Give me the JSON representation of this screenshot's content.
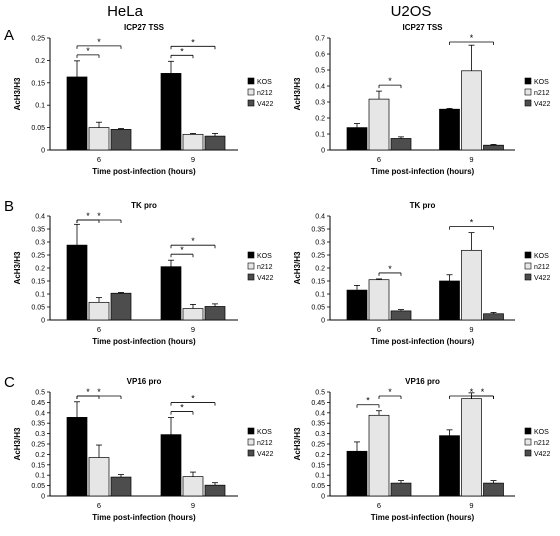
{
  "column_titles": [
    "HeLa",
    "U2OS"
  ],
  "row_labels": [
    "A",
    "B",
    "C"
  ],
  "colors": {
    "KOS": "#000000",
    "n212": "#e6e6e6",
    "V422": "#4d4d4d"
  },
  "chart_data": [
    {
      "type": "bar",
      "title": "ICP27 TSS",
      "xlabel": "Time post-infection  (hours)",
      "ylabel": "AcH3/H3",
      "categories": [
        "6",
        "9"
      ],
      "ylim": [
        0,
        0.25
      ],
      "yticks": [
        "0",
        "0.05",
        "0.1",
        "0.15",
        "0.2",
        "0.25"
      ],
      "series": [
        {
          "name": "KOS",
          "values": [
            0.163,
            0.171
          ],
          "errors": [
            0.036,
            0.027
          ]
        },
        {
          "name": "n212",
          "values": [
            0.05,
            0.035
          ],
          "errors": [
            0.012,
            0.002
          ]
        },
        {
          "name": "V422",
          "values": [
            0.046,
            0.031
          ],
          "errors": [
            0.002,
            0.006
          ]
        }
      ],
      "significance": [
        {
          "cat": 0,
          "from": 0,
          "to": 1,
          "label": "*"
        },
        {
          "cat": 0,
          "from": 0,
          "to": 2,
          "label": "*"
        },
        {
          "cat": 1,
          "from": 0,
          "to": 1,
          "label": "*"
        },
        {
          "cat": 1,
          "from": 0,
          "to": 2,
          "label": "*"
        }
      ]
    },
    {
      "type": "bar",
      "title": "ICP27 TSS",
      "xlabel": "Time post-infection  (hours)",
      "ylabel": "AcH3/H3",
      "categories": [
        "6",
        "9"
      ],
      "ylim": [
        0,
        0.7
      ],
      "yticks": [
        "0",
        "0.1",
        "0.2",
        "0.3",
        "0.4",
        "0.5",
        "0.6",
        "0.7"
      ],
      "series": [
        {
          "name": "KOS",
          "values": [
            0.14,
            0.255
          ],
          "errors": [
            0.025,
            0.005
          ]
        },
        {
          "name": "n212",
          "values": [
            0.318,
            0.495
          ],
          "errors": [
            0.05,
            0.16
          ]
        },
        {
          "name": "V422",
          "values": [
            0.072,
            0.03
          ],
          "errors": [
            0.01,
            0.005
          ]
        }
      ],
      "significance": [
        {
          "cat": 0,
          "from": 1,
          "to": 2,
          "label": "*"
        },
        {
          "cat": 1,
          "from": 0,
          "to": 2,
          "label": "*"
        }
      ]
    },
    {
      "type": "bar",
      "title": "TK pro",
      "xlabel": "Time post-infection  (hours)",
      "ylabel": "AcH3/H3",
      "categories": [
        "6",
        "9"
      ],
      "ylim": [
        0,
        0.4
      ],
      "yticks": [
        "0",
        "0.05",
        "0.1",
        "0.15",
        "0.2",
        "0.25",
        "0.3",
        "0.35",
        "0.4"
      ],
      "series": [
        {
          "name": "KOS",
          "values": [
            0.288,
            0.205
          ],
          "errors": [
            0.08,
            0.025
          ]
        },
        {
          "name": "n212",
          "values": [
            0.068,
            0.044
          ],
          "errors": [
            0.018,
            0.016
          ]
        },
        {
          "name": "V422",
          "values": [
            0.103,
            0.052
          ],
          "errors": [
            0.003,
            0.01
          ]
        }
      ],
      "significance": [
        {
          "cat": 0,
          "from": 0,
          "to": 1,
          "label": "*"
        },
        {
          "cat": 0,
          "from": 0,
          "to": 2,
          "label": "*"
        },
        {
          "cat": 1,
          "from": 0,
          "to": 1,
          "label": "*"
        },
        {
          "cat": 1,
          "from": 0,
          "to": 2,
          "label": "*"
        }
      ]
    },
    {
      "type": "bar",
      "title": "TK pro",
      "xlabel": "Time post-infection  (hours)",
      "ylabel": "AcH3/H3",
      "categories": [
        "6",
        "9"
      ],
      "ylim": [
        0,
        0.4
      ],
      "yticks": [
        "0",
        "0.05",
        "0.1",
        "0.15",
        "0.2",
        "0.25",
        "0.3",
        "0.35",
        "0.4"
      ],
      "series": [
        {
          "name": "KOS",
          "values": [
            0.115,
            0.15
          ],
          "errors": [
            0.018,
            0.024
          ]
        },
        {
          "name": "n212",
          "values": [
            0.155,
            0.268
          ],
          "errors": [
            0.003,
            0.068
          ]
        },
        {
          "name": "V422",
          "values": [
            0.035,
            0.024
          ],
          "errors": [
            0.005,
            0.005
          ]
        }
      ],
      "significance": [
        {
          "cat": 0,
          "from": 1,
          "to": 2,
          "label": "*"
        },
        {
          "cat": 1,
          "from": 0,
          "to": 2,
          "label": "*"
        }
      ]
    },
    {
      "type": "bar",
      "title": "VP16 pro",
      "xlabel": "Time post-infection  (hours)",
      "ylabel": "AcH3/H3",
      "categories": [
        "6",
        "9"
      ],
      "ylim": [
        0,
        0.5
      ],
      "yticks": [
        "0",
        "0.05",
        "0.1",
        "0.15",
        "0.2",
        "0.25",
        "0.3",
        "0.35",
        "0.4",
        "0.45",
        "0.5"
      ],
      "series": [
        {
          "name": "KOS",
          "values": [
            0.378,
            0.295
          ],
          "errors": [
            0.075,
            0.082
          ]
        },
        {
          "name": "n212",
          "values": [
            0.185,
            0.093
          ],
          "errors": [
            0.06,
            0.022
          ]
        },
        {
          "name": "V422",
          "values": [
            0.091,
            0.052
          ],
          "errors": [
            0.012,
            0.012
          ]
        }
      ],
      "significance": [
        {
          "cat": 0,
          "from": 0,
          "to": 1,
          "label": "*"
        },
        {
          "cat": 0,
          "from": 0,
          "to": 2,
          "label": "*"
        },
        {
          "cat": 1,
          "from": 0,
          "to": 1,
          "label": "*"
        },
        {
          "cat": 1,
          "from": 0,
          "to": 2,
          "label": "*"
        }
      ]
    },
    {
      "type": "bar",
      "title": "VP16 pro",
      "xlabel": "Time post-infection  (hours)",
      "ylabel": "AcH3/H3",
      "categories": [
        "6",
        "9"
      ],
      "ylim": [
        0,
        0.5
      ],
      "yticks": [
        "0",
        "0.05",
        "0.1",
        "0.15",
        "0.2",
        "0.25",
        "0.3",
        "0.35",
        "0.4",
        "0.45",
        "0.5"
      ],
      "series": [
        {
          "name": "KOS",
          "values": [
            0.215,
            0.29
          ],
          "errors": [
            0.045,
            0.028
          ]
        },
        {
          "name": "n212",
          "values": [
            0.388,
            0.468
          ],
          "errors": [
            0.022,
            0.028
          ]
        },
        {
          "name": "V422",
          "values": [
            0.062,
            0.062
          ],
          "errors": [
            0.012,
            0.012
          ]
        }
      ],
      "significance": [
        {
          "cat": 0,
          "from": 0,
          "to": 1,
          "label": "*"
        },
        {
          "cat": 0,
          "from": 1,
          "to": 2,
          "label": "*"
        },
        {
          "cat": 1,
          "from": 0,
          "to": 2,
          "label": "*"
        },
        {
          "cat": 1,
          "from": 1,
          "to": 2,
          "label": "*"
        }
      ]
    }
  ]
}
